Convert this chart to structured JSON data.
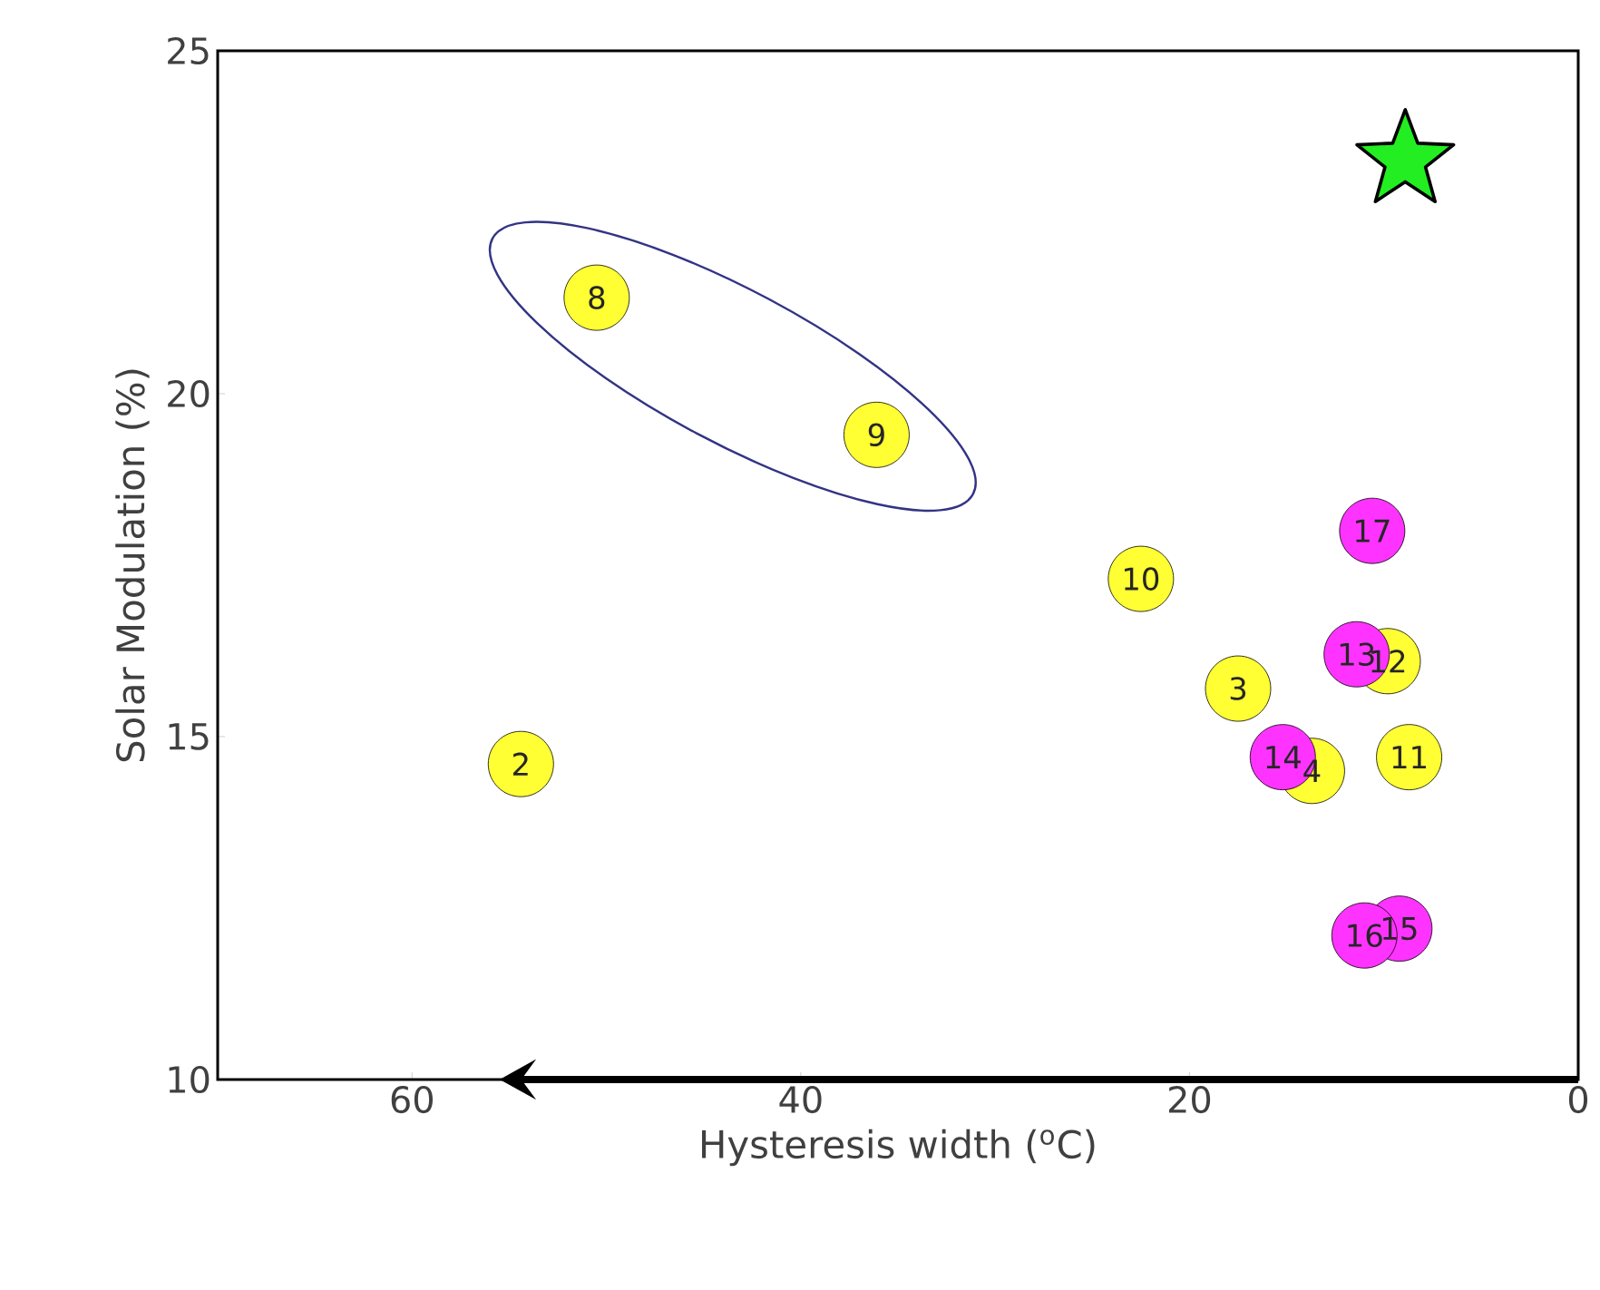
{
  "chart_data": {
    "type": "scatter",
    "xlabel": "Hysteresis width ($^{o}$C)",
    "ylabel": "Solar Modulation (%)",
    "xlim": [
      70,
      0
    ],
    "ylim": [
      10,
      25
    ],
    "xticks": [
      60,
      40,
      20,
      0
    ],
    "yticks": [
      10,
      15,
      20,
      25
    ],
    "marker": "circle",
    "series": [
      {
        "color": "#ffff33",
        "x": [
          54.4,
          17.5,
          13.7,
          50.5,
          36.1,
          22.5,
          8.7,
          9.8
        ],
        "values": [
          14.6,
          15.7,
          14.5,
          21.4,
          19.4,
          17.3,
          14.7,
          16.1
        ]
      },
      {
        "color": "#ff33ff",
        "x": [
          11.4,
          15.2,
          9.2,
          11.0,
          10.6
        ],
        "values": [
          16.2,
          14.7,
          12.2,
          12.1,
          18.0
        ]
      },
      {
        "color": "#22ee22",
        "marker": "star",
        "x": [
          8.9
        ],
        "values": [
          23.4
        ]
      }
    ],
    "annotations": [
      {
        "text": "2",
        "x": 54.4,
        "y": 14.6
      },
      {
        "text": "3",
        "x": 17.5,
        "y": 15.7
      },
      {
        "text": "4",
        "x": 13.7,
        "y": 14.5
      },
      {
        "text": "8",
        "x": 50.5,
        "y": 21.4
      },
      {
        "text": "9",
        "x": 36.1,
        "y": 19.4
      },
      {
        "text": "10",
        "x": 22.5,
        "y": 17.3
      },
      {
        "text": "11",
        "x": 8.7,
        "y": 14.7
      },
      {
        "text": "12",
        "x": 9.8,
        "y": 16.1
      },
      {
        "text": "13",
        "x": 11.4,
        "y": 16.2
      },
      {
        "text": "14",
        "x": 15.2,
        "y": 14.7
      },
      {
        "text": "15",
        "x": 9.2,
        "y": 12.2
      },
      {
        "text": "16",
        "x": 11.0,
        "y": 12.1
      },
      {
        "text": "17",
        "x": 10.6,
        "y": 18.0
      }
    ]
  }
}
